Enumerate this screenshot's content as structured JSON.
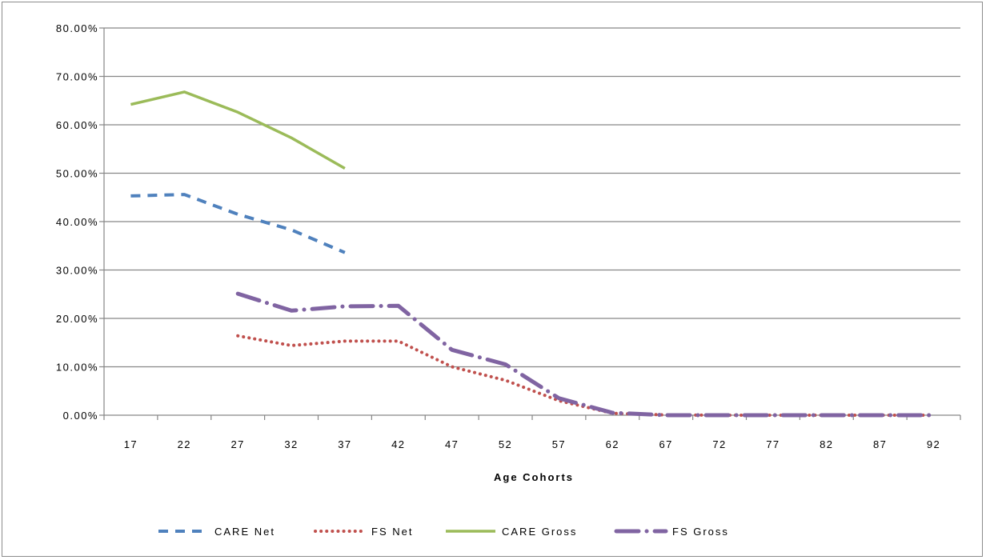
{
  "chart_data": {
    "type": "line",
    "title": "",
    "xlabel": "Age Cohorts",
    "ylabel": "",
    "x": [
      17,
      22,
      27,
      32,
      37,
      42,
      47,
      52,
      57,
      62,
      67,
      72,
      77,
      82,
      87,
      92
    ],
    "y_tick_labels": [
      "0.00%",
      "10.00%",
      "20.00%",
      "30.00%",
      "40.00%",
      "50.00%",
      "60.00%",
      "70.00%",
      "80.00%"
    ],
    "ylim": [
      0,
      80
    ],
    "grid": true,
    "legend_position": "bottom",
    "series": [
      {
        "name": "CARE Net",
        "color": "#4f81bd",
        "style": "dashed",
        "values": [
          45.3,
          45.6,
          41.5,
          38.3,
          33.6,
          null,
          null,
          null,
          null,
          null,
          null,
          null,
          null,
          null,
          null,
          null
        ]
      },
      {
        "name": "FS Net",
        "color": "#c0504d",
        "style": "dotted",
        "values": [
          null,
          null,
          16.4,
          14.4,
          15.3,
          15.3,
          10.0,
          7.2,
          3.0,
          0.4,
          0.05,
          0.0,
          0.0,
          0.0,
          0.0,
          0.0
        ]
      },
      {
        "name": "CARE Gross",
        "color": "#9bbb59",
        "style": "solid",
        "values": [
          64.2,
          66.8,
          62.6,
          57.3,
          51.0,
          null,
          null,
          null,
          null,
          null,
          null,
          null,
          null,
          null,
          null,
          null
        ]
      },
      {
        "name": "FS Gross",
        "color": "#8064a2",
        "style": "dash-dot",
        "values": [
          null,
          null,
          25.1,
          21.6,
          22.5,
          22.6,
          13.5,
          10.5,
          3.5,
          0.5,
          0.0,
          0.0,
          0.0,
          0.0,
          0.0,
          0.0
        ]
      }
    ]
  }
}
